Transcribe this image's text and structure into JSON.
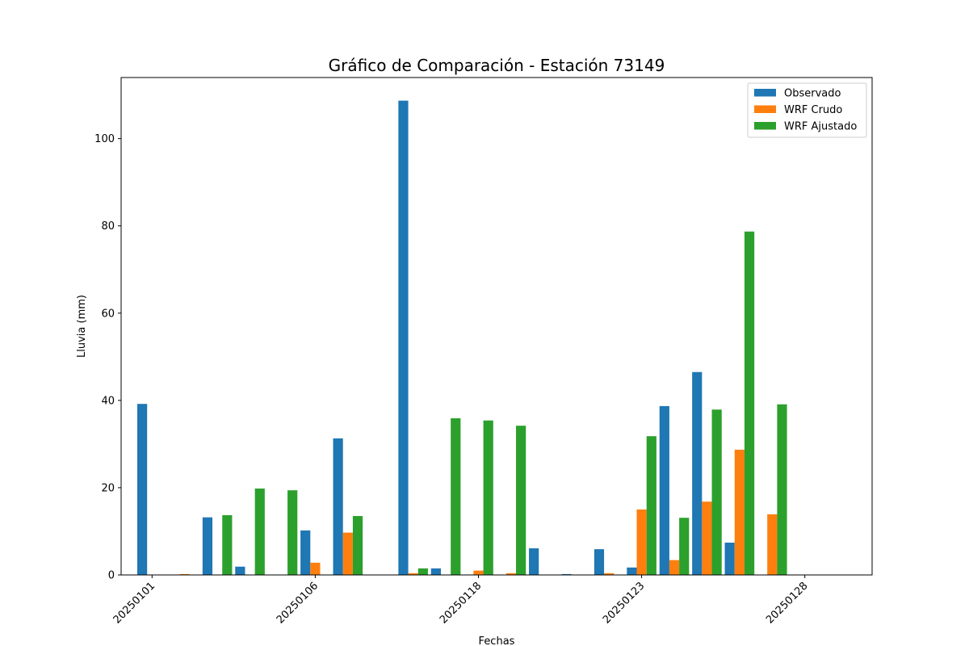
{
  "chart_data": {
    "type": "bar",
    "title": "Gráfico de Comparación - Estación 73149",
    "xlabel": "Fechas",
    "ylabel": "Lluvia (mm)",
    "ylim": [
      0,
      114
    ],
    "yticks": [
      0,
      20,
      40,
      60,
      80,
      100
    ],
    "grid": false,
    "legend_position": "top-right",
    "categories": [
      "20250101",
      "",
      "",
      "",
      "",
      "20250106",
      "",
      "",
      "",
      "",
      "20250118",
      "",
      "",
      "",
      "",
      "20250123",
      "",
      "",
      "",
      "",
      "20250128"
    ],
    "series": [
      {
        "name": "Observado",
        "color": "#1f77b4",
        "values": [
          39.2,
          0,
          13.2,
          1.9,
          0,
          10.2,
          31.3,
          0,
          108.7,
          1.5,
          0.1,
          0,
          6.1,
          0.2,
          5.9,
          1.7,
          38.7,
          46.5,
          7.4,
          0,
          0
        ]
      },
      {
        "name": "WRF Crudo",
        "color": "#ff7f0e",
        "values": [
          0,
          0.2,
          0,
          0,
          0,
          2.8,
          9.7,
          0,
          0.4,
          0,
          1.0,
          0.4,
          0,
          0,
          0.4,
          15.0,
          3.4,
          16.8,
          28.7,
          13.9,
          0
        ]
      },
      {
        "name": "WRF Ajustado",
        "color": "#2ca02c",
        "values": [
          0,
          0,
          13.7,
          19.8,
          19.4,
          0,
          13.5,
          0,
          1.5,
          35.9,
          35.4,
          34.2,
          0,
          0,
          0,
          31.8,
          13.1,
          37.9,
          78.7,
          39.1,
          0
        ]
      }
    ]
  }
}
